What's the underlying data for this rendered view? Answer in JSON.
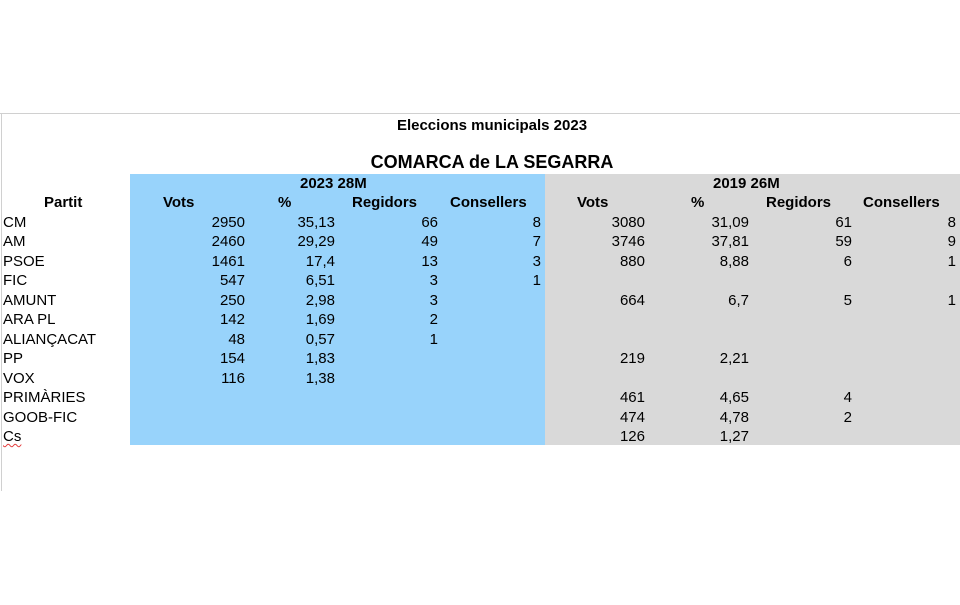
{
  "title": "Eleccions municipals 2023",
  "subtitle": "COMARCA de LA SEGARRA",
  "group_2023": "2023 28M",
  "group_2019": "2019 26M",
  "headers": {
    "partit": "Partit",
    "vots_2023": "Vots",
    "pct_2023": "%",
    "regidors_2023": "Regidors",
    "consellers_2023": "Consellers",
    "vots_2019": "Vots",
    "pct_2019": "%",
    "regidors_2019": "Regidors",
    "consellers_2019": "Consellers"
  },
  "rows": [
    {
      "partit": "CM",
      "vots_2023": "2950",
      "pct_2023": "35,13",
      "regidors_2023": "66",
      "consellers_2023": "8",
      "vots_2019": "3080",
      "pct_2019": "31,09",
      "regidors_2019": "61",
      "consellers_2019": "8"
    },
    {
      "partit": "AM",
      "vots_2023": "2460",
      "pct_2023": "29,29",
      "regidors_2023": "49",
      "consellers_2023": "7",
      "vots_2019": "3746",
      "pct_2019": "37,81",
      "regidors_2019": "59",
      "consellers_2019": "9"
    },
    {
      "partit": "PSOE",
      "vots_2023": "1461",
      "pct_2023": "17,4",
      "regidors_2023": "13",
      "consellers_2023": "3",
      "vots_2019": "880",
      "pct_2019": "8,88",
      "regidors_2019": "6",
      "consellers_2019": "1"
    },
    {
      "partit": "FIC",
      "vots_2023": "547",
      "pct_2023": "6,51",
      "regidors_2023": "3",
      "consellers_2023": "1",
      "vots_2019": "",
      "pct_2019": "",
      "regidors_2019": "",
      "consellers_2019": ""
    },
    {
      "partit": "AMUNT",
      "vots_2023": "250",
      "pct_2023": "2,98",
      "regidors_2023": "3",
      "consellers_2023": "",
      "vots_2019": "664",
      "pct_2019": "6,7",
      "regidors_2019": "5",
      "consellers_2019": "1"
    },
    {
      "partit": "ARA PL",
      "vots_2023": "142",
      "pct_2023": "1,69",
      "regidors_2023": "2",
      "consellers_2023": "",
      "vots_2019": "",
      "pct_2019": "",
      "regidors_2019": "",
      "consellers_2019": ""
    },
    {
      "partit": "ALIANÇACAT",
      "vots_2023": "48",
      "pct_2023": "0,57",
      "regidors_2023": "1",
      "consellers_2023": "",
      "vots_2019": "",
      "pct_2019": "",
      "regidors_2019": "",
      "consellers_2019": ""
    },
    {
      "partit": "PP",
      "vots_2023": "154",
      "pct_2023": "1,83",
      "regidors_2023": "",
      "consellers_2023": "",
      "vots_2019": "219",
      "pct_2019": "2,21",
      "regidors_2019": "",
      "consellers_2019": ""
    },
    {
      "partit": "VOX",
      "vots_2023": "116",
      "pct_2023": "1,38",
      "regidors_2023": "",
      "consellers_2023": "",
      "vots_2019": "",
      "pct_2019": "",
      "regidors_2019": "",
      "consellers_2019": ""
    },
    {
      "partit": "PRIMÀRIES",
      "vots_2023": "",
      "pct_2023": "",
      "regidors_2023": "",
      "consellers_2023": "",
      "vots_2019": "461",
      "pct_2019": "4,65",
      "regidors_2019": "4",
      "consellers_2019": ""
    },
    {
      "partit": "GOOB-FIC",
      "vots_2023": "",
      "pct_2023": "",
      "regidors_2023": "",
      "consellers_2023": "",
      "vots_2019": "474",
      "pct_2019": "4,78",
      "regidors_2019": "2",
      "consellers_2019": ""
    },
    {
      "partit": "Cs",
      "vots_2023": "",
      "pct_2023": "",
      "regidors_2023": "",
      "consellers_2023": "",
      "vots_2019": "126",
      "pct_2019": "1,27",
      "regidors_2019": "",
      "consellers_2019": ""
    }
  ]
}
